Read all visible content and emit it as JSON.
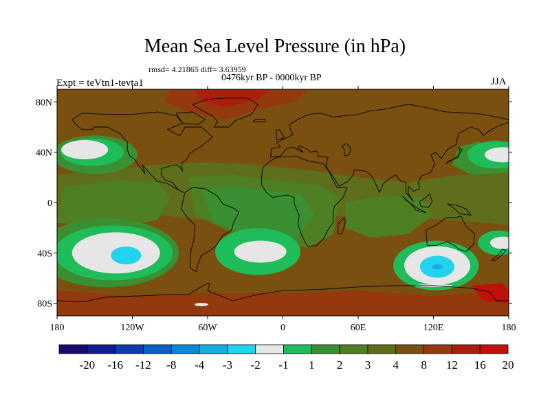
{
  "chart_data": {
    "type": "heatmap",
    "title": "Mean Sea Level Pressure (in hPa)",
    "stats_label": "rmsd= 4.21865  diff= 3.63959",
    "period_label": "0476kyr BP - 0000kyr BP",
    "experiment_label": "Expt = teVtn1-tevta1",
    "season": "JJA",
    "x_ticks": [
      "180",
      "120W",
      "60W",
      "0",
      "60E",
      "120E",
      "180"
    ],
    "x_tick_values": [
      -180,
      -120,
      -60,
      0,
      60,
      120,
      180
    ],
    "y_ticks": [
      "80N",
      "40N",
      "0",
      "40S",
      "80S"
    ],
    "y_tick_values": [
      80,
      40,
      0,
      -40,
      -80
    ],
    "xlim": [
      -180,
      180
    ],
    "ylim": [
      -90,
      90
    ],
    "colorbar": {
      "colors": [
        "#1a0a6e",
        "#0c1e8f",
        "#0a3caa",
        "#0b5ec4",
        "#0a86d4",
        "#17aee0",
        "#22d3ee",
        "#e6e6e6",
        "#1ebd5a",
        "#3a8f33",
        "#4e7f22",
        "#5e6e1a",
        "#7a5010",
        "#94380e",
        "#a8200c",
        "#c0100a"
      ],
      "labels": [
        "-20",
        "-16",
        "-12",
        "-8",
        "-4",
        "-3",
        "-2",
        "-1",
        "1",
        "2",
        "3",
        "4",
        "8",
        "12",
        "16",
        "20"
      ]
    },
    "background_level": "4 to 8",
    "features": [
      {
        "name": "north-pacific-high",
        "lon": -150,
        "lat": 40,
        "level": "-1 to 1"
      },
      {
        "name": "south-pacific-low",
        "lon": -125,
        "lat": -45,
        "level": "-3 to -2"
      },
      {
        "name": "south-atlantic-high",
        "lon": -15,
        "lat": -40,
        "level": "-1 to 1"
      },
      {
        "name": "south-indian-low",
        "lon": 123,
        "lat": -52,
        "level": "-2 to -1"
      },
      {
        "name": "arctic-greenland-high",
        "lon": -45,
        "lat": 82,
        "level": "16 to 20"
      }
    ]
  }
}
